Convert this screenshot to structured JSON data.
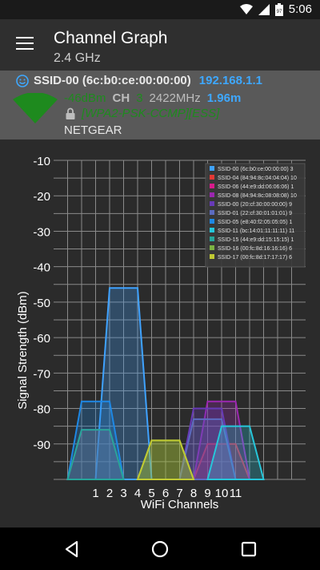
{
  "status_bar": {
    "time": "5:06",
    "battery_level": "97"
  },
  "header": {
    "title": "Channel Graph",
    "subtitle": "2.4 GHz"
  },
  "access_point": {
    "ssid": "SSID-00 (6c:b0:ce:00:00:00)",
    "ip": "192.168.1.1",
    "signal": "-46dBm",
    "channel_label": "CH",
    "channel": "3",
    "frequency": "2422MHz",
    "distance": "1.96m",
    "security": "[WPA2-PSK-CCMP][ESS]",
    "vendor": "NETGEAR"
  },
  "colors": {
    "accent_blue": "#3ea8ff",
    "signal_green": "#1e8a1e",
    "background": "#2b2b2b"
  },
  "chart_data": {
    "type": "area",
    "xlabel": "WiFi Channels",
    "ylabel": "Signal Strength (dBm)",
    "x_ticks": [
      1,
      2,
      3,
      4,
      5,
      6,
      7,
      8,
      9,
      10,
      11
    ],
    "y_ticks": [
      -10,
      -20,
      -30,
      -40,
      -50,
      -60,
      -70,
      -80,
      -90
    ],
    "ylim": [
      -100,
      -10
    ],
    "xlim": [
      -2,
      16
    ],
    "grid": true,
    "legend_position": "top-right",
    "series": [
      {
        "legend": "SSID-00 (6c:b0:ce:00:00:00) 3",
        "color": "#3fa2ff",
        "channel": 3,
        "dbm": -46
      },
      {
        "legend": "SSID-04 (84:94:8c:04:04:04) 10",
        "color": "#e53935",
        "channel": 10,
        "dbm": -90
      },
      {
        "legend": "SSID-06 (44:e9:dd:06:06:06) 1",
        "color": "#d81b8c",
        "channel": 1,
        "dbm": -86
      },
      {
        "legend": "SSID-08 (84:94:8c:08:08:08) 10",
        "color": "#9c27b0",
        "channel": 10,
        "dbm": -78
      },
      {
        "legend": "SSID-00 (20:cf:30:00:00:00) 9",
        "color": "#673ab7",
        "channel": 9,
        "dbm": -80
      },
      {
        "legend": "SSID-01 (22:cf:30:01:01:01) 9",
        "color": "#5c6bc0",
        "channel": 9,
        "dbm": -83
      },
      {
        "legend": "SSID-05 (e8:40:f2:05:05:05) 1",
        "color": "#1e88e5",
        "channel": 1,
        "dbm": -78
      },
      {
        "legend": "SSID-11 (bc:14:01:11:11:11) 11",
        "color": "#26c6da",
        "channel": 11,
        "dbm": -85
      },
      {
        "legend": "SSID-15 (44:e9:dd:15:15:15) 1",
        "color": "#26a69a",
        "channel": 1,
        "dbm": -86
      },
      {
        "legend": "SSID-16 (00:fc:8d:16:16:16) 6",
        "color": "#7cb342",
        "channel": 6,
        "dbm": -89
      },
      {
        "legend": "SSID-17 (00:fc:8d:17:17:17) 6",
        "color": "#c0ca33",
        "channel": 6,
        "dbm": -89
      }
    ]
  }
}
